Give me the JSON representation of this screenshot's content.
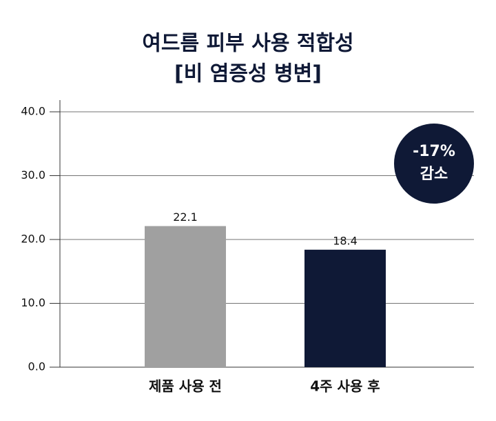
{
  "chart_data": {
    "type": "bar",
    "title": [
      "여드름 피부 사용 적합성",
      "[비 염증성 병변]"
    ],
    "categories": [
      "제품 사용 전",
      "4주 사용 후"
    ],
    "values": [
      22.1,
      18.4
    ],
    "colors": [
      "#a0a0a0",
      "#0f1936"
    ],
    "ylim": [
      0,
      40
    ],
    "yticks": [
      {
        "value": 0,
        "label": "0.0"
      },
      {
        "value": 10,
        "label": "10.0"
      },
      {
        "value": 20,
        "label": "20.0"
      },
      {
        "value": 30,
        "label": "30.0"
      },
      {
        "value": 40,
        "label": "40.0"
      }
    ],
    "grid": true,
    "annotation": [
      "-17%",
      "감소"
    ],
    "annotation_color": "#0f1936"
  }
}
